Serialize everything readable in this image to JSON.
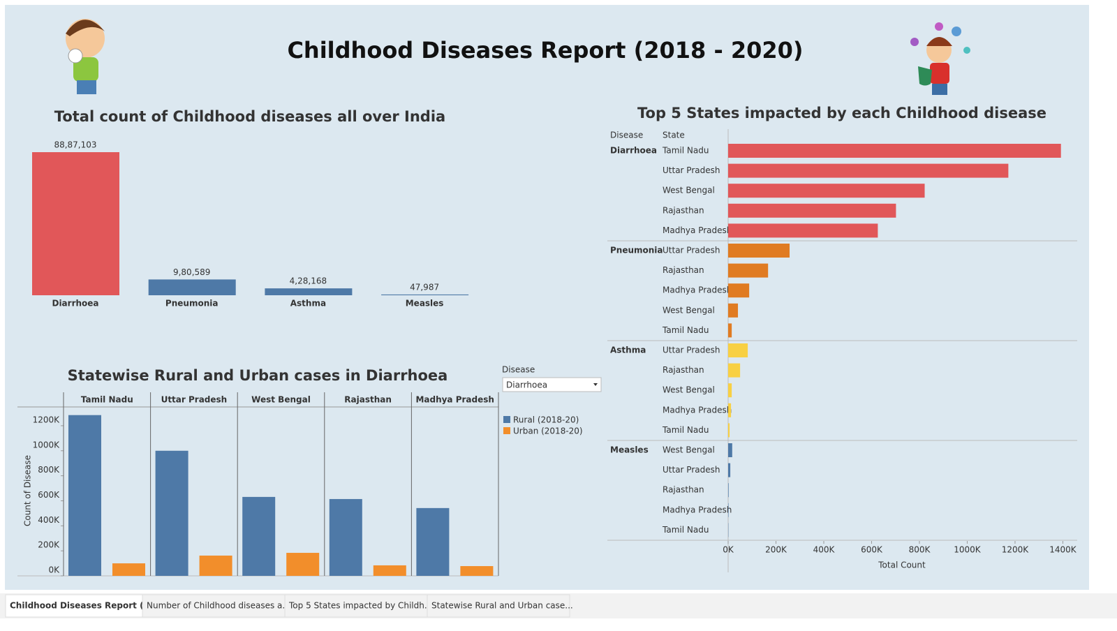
{
  "title": "Childhood Diseases Report (2018 - 2020)",
  "chart_data": [
    {
      "type": "bar",
      "title": "Total count of Childhood diseases all over India",
      "categories": [
        "Diarrhoea",
        "Pneumonia",
        "Asthma",
        "Measles"
      ],
      "values": [
        8887103,
        980589,
        428168,
        47987
      ],
      "value_labels": [
        "88,87,103",
        "9,80,589",
        "4,28,168",
        "47,987"
      ],
      "colors": [
        "#e15759",
        "#4e79a7",
        "#4e79a7",
        "#4e79a7"
      ]
    },
    {
      "type": "grouped-bar",
      "title": "Statewise Rural and Urban cases in Diarrhoea",
      "filter_label": "Disease",
      "filter_value": "Diarrhoea",
      "y_label": "Count of Disease",
      "categories": [
        "Tamil Nadu",
        "Uttar Pradesh",
        "West Bengal",
        "Rajasthan",
        "Madhya Pradesh"
      ],
      "series": [
        {
          "name": "Rural (2018-20)",
          "color": "#4e79a7",
          "values": [
            1285000,
            1000000,
            631000,
            614000,
            542000
          ]
        },
        {
          "name": "Urban (2018-20)",
          "color": "#f28e2b",
          "values": [
            100000,
            162000,
            184000,
            84000,
            78000
          ]
        }
      ],
      "ylim": [
        0,
        1300000
      ],
      "yticks": [
        {
          "value": 0,
          "label": "0K"
        },
        {
          "value": 200000,
          "label": "200K"
        },
        {
          "value": 400000,
          "label": "400K"
        },
        {
          "value": 600000,
          "label": "600K"
        },
        {
          "value": 800000,
          "label": "800K"
        },
        {
          "value": 1000000,
          "label": "1000K"
        },
        {
          "value": 1200000,
          "label": "1200K"
        }
      ]
    },
    {
      "type": "hbar",
      "title": "Top 5 States impacted by each Childhood disease",
      "columns": [
        "Disease",
        "State"
      ],
      "x_label": "Total Count",
      "groups": [
        {
          "name": "Diarrhoea",
          "color": "#e15759",
          "categories": [
            "Tamil Nadu",
            "Uttar Pradesh",
            "West Bengal",
            "Rajasthan",
            "Madhya Pradesh"
          ],
          "values": [
            1392000,
            1172000,
            822000,
            702000,
            626000
          ]
        },
        {
          "name": "Pneumonia",
          "color": "#e07b22",
          "categories": [
            "Uttar Pradesh",
            "Rajasthan",
            "Madhya Pradesh",
            "West Bengal",
            "Tamil Nadu"
          ],
          "values": [
            257000,
            167000,
            88000,
            41000,
            15000
          ]
        },
        {
          "name": "Asthma",
          "color": "#f8d043",
          "categories": [
            "Uttar Pradesh",
            "Rajasthan",
            "West Bengal",
            "Madhya Pradesh",
            "Tamil Nadu"
          ],
          "values": [
            82000,
            50000,
            15000,
            12000,
            6000
          ]
        },
        {
          "name": "Measles",
          "color": "#4e79a7",
          "categories": [
            "West Bengal",
            "Uttar Pradesh",
            "Rajasthan",
            "Madhya Pradesh",
            "Tamil Nadu"
          ],
          "values": [
            17000,
            9000,
            2000,
            1500,
            1000
          ]
        }
      ],
      "xlim": [
        0,
        1460000
      ],
      "xticks": [
        {
          "value": 0,
          "label": "0K"
        },
        {
          "value": 200000,
          "label": "200K"
        },
        {
          "value": 400000,
          "label": "400K"
        },
        {
          "value": 600000,
          "label": "600K"
        },
        {
          "value": 800000,
          "label": "800K"
        },
        {
          "value": 1000000,
          "label": "1000K"
        },
        {
          "value": 1200000,
          "label": "1200K"
        },
        {
          "value": 1400000,
          "label": "1400K"
        }
      ]
    }
  ],
  "tabs": [
    "Childhood Diseases Report (...",
    "Number of Childhood diseases a...",
    "Top 5 States impacted by Childh...",
    "Statewise Rural and Urban case..."
  ]
}
